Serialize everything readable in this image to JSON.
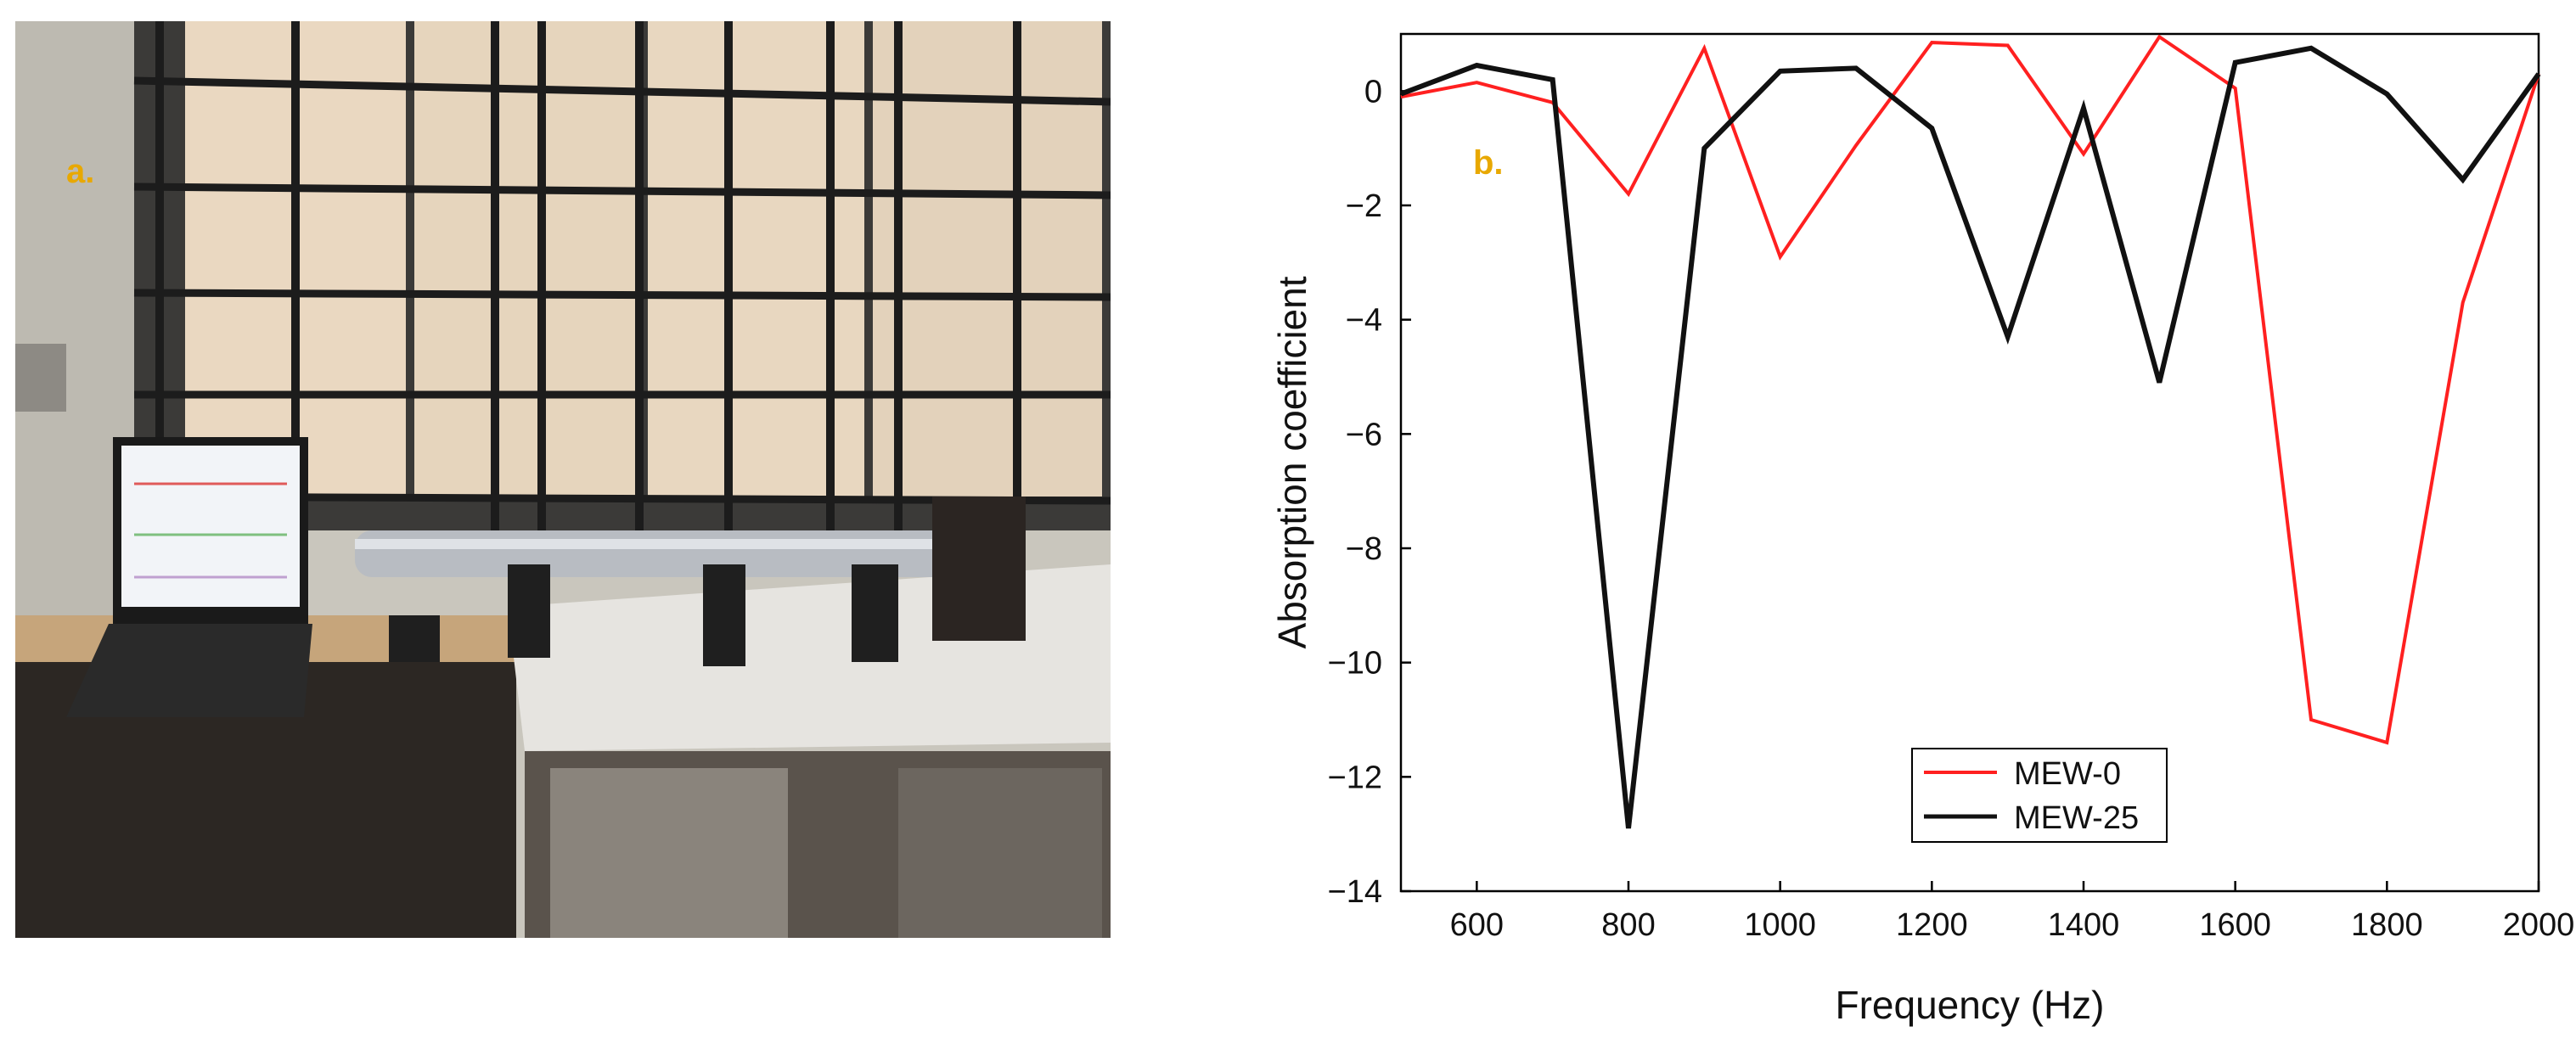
{
  "panel_a": {
    "label": "a.",
    "photo_description_icon": "lab-apparatus-photo-icon"
  },
  "chart_data": {
    "type": "line",
    "panel_label": "b.",
    "title": "",
    "xlabel": "Frequency (Hz)",
    "ylabel": "Absorption coefficient",
    "xlim": [
      500,
      2000
    ],
    "ylim": [
      -14,
      1
    ],
    "xticks": [
      600,
      800,
      1000,
      1200,
      1400,
      1600,
      1800,
      2000
    ],
    "yticks": [
      0,
      -2,
      -4,
      -6,
      -8,
      -10,
      -12,
      -14
    ],
    "ytick_labels": [
      "0",
      "−2",
      "−4",
      "−6",
      "−8",
      "−10",
      "−12",
      "−14"
    ],
    "grid": false,
    "legend_position": "bottom-center",
    "series": [
      {
        "name": "MEW-0",
        "color": "#ff2020",
        "x": [
          500,
          600,
          700,
          800,
          900,
          1000,
          1100,
          1200,
          1300,
          1400,
          1500,
          1600,
          1700,
          1800,
          1900,
          2000
        ],
        "y": [
          -0.1,
          0.15,
          -0.2,
          -1.8,
          0.75,
          -2.9,
          -0.95,
          0.85,
          0.8,
          -1.1,
          0.95,
          0.05,
          -11.0,
          -11.4,
          -3.7,
          0.3
        ]
      },
      {
        "name": "MEW-25",
        "color": "#111111",
        "x": [
          500,
          600,
          700,
          800,
          900,
          1000,
          1100,
          1200,
          1300,
          1400,
          1500,
          1600,
          1700,
          1800,
          1900,
          2000
        ],
        "y": [
          -0.05,
          0.45,
          0.2,
          -12.9,
          -1.0,
          0.35,
          0.4,
          -0.65,
          -4.3,
          -0.3,
          -5.1,
          0.5,
          0.75,
          -0.05,
          -1.55,
          0.3
        ]
      }
    ]
  }
}
